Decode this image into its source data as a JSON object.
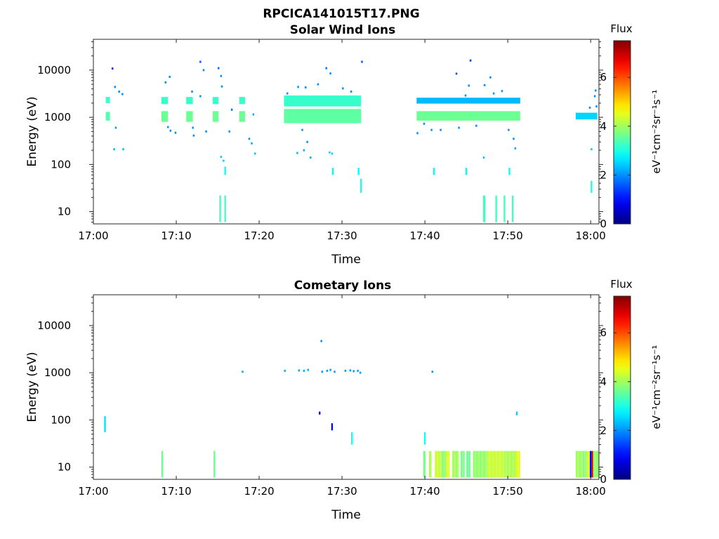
{
  "figure_title": "RPCICA141015T17.PNG",
  "chart_data": [
    {
      "type": "heatmap",
      "title": "Solar Wind Ions",
      "xlabel": "Time",
      "ylabel": "Energy (eV)",
      "x_ticks": [
        "17:00",
        "17:10",
        "17:20",
        "17:30",
        "17:40",
        "17:50",
        "18:00"
      ],
      "x_range": [
        "17:00",
        "18:01"
      ],
      "y_scale": "log",
      "y_ticks": [
        "10",
        "100",
        "1000",
        "10000"
      ],
      "y_range": [
        5.5,
        45000
      ],
      "colorbar": {
        "label": "Flux",
        "unit": "eV⁻¹cm⁻²sr⁻¹s⁻¹",
        "ticks": [
          "0",
          "2",
          "4",
          "6"
        ],
        "range": [
          0,
          7.5
        ],
        "colormap": "jet"
      },
      "patches": [
        {
          "t": [
            "17:01.5",
            "17:02.0"
          ],
          "e": [
            850,
            1300
          ],
          "v": 3.4
        },
        {
          "t": [
            "17:01.5",
            "17:02.0"
          ],
          "e": [
            2000,
            2700
          ],
          "v": 3.2
        },
        {
          "t": [
            "17:08.2",
            "17:09.0"
          ],
          "e": [
            800,
            1350
          ],
          "v": 3.6
        },
        {
          "t": [
            "17:08.2",
            "17:09.0"
          ],
          "e": [
            1900,
            2700
          ],
          "v": 3.2
        },
        {
          "t": [
            "17:11.2",
            "17:12.0"
          ],
          "e": [
            800,
            1350
          ],
          "v": 3.6
        },
        {
          "t": [
            "17:11.2",
            "17:12.0"
          ],
          "e": [
            1900,
            2700
          ],
          "v": 3.2
        },
        {
          "t": [
            "17:14.4",
            "17:15.1"
          ],
          "e": [
            800,
            1350
          ],
          "v": 3.6
        },
        {
          "t": [
            "17:14.4",
            "17:15.1"
          ],
          "e": [
            1900,
            2700
          ],
          "v": 3.2
        },
        {
          "t": [
            "17:17.6",
            "17:18.3"
          ],
          "e": [
            800,
            1350
          ],
          "v": 3.6
        },
        {
          "t": [
            "17:17.6",
            "17:18.3"
          ],
          "e": [
            1900,
            2700
          ],
          "v": 3.2
        },
        {
          "t": [
            "17:23.0",
            "17:32.3"
          ],
          "e": [
            750,
            1500
          ],
          "v": 3.5
        },
        {
          "t": [
            "17:23.0",
            "17:32.3"
          ],
          "e": [
            1700,
            2900
          ],
          "v": 3.2
        },
        {
          "t": [
            "17:39.0",
            "17:51.5"
          ],
          "e": [
            850,
            1350
          ],
          "v": 3.6
        },
        {
          "t": [
            "17:39.0",
            "17:51.5"
          ],
          "e": [
            1950,
            2600
          ],
          "v": 2.3
        },
        {
          "t": [
            "17:58.2",
            "18:00.8"
          ],
          "e": [
            900,
            1250
          ],
          "v": 2.5
        },
        {
          "t": [
            "17:15.2",
            "17:15.4"
          ],
          "e": [
            6,
            22
          ],
          "v": 3.3
        },
        {
          "t": [
            "17:15.8",
            "17:16.0"
          ],
          "e": [
            6,
            22
          ],
          "v": 3.3
        },
        {
          "t": [
            "17:15.8",
            "17:16.0"
          ],
          "e": [
            60,
            90
          ],
          "v": 2.8
        },
        {
          "t": [
            "17:28.8",
            "17:29.0"
          ],
          "e": [
            60,
            85
          ],
          "v": 2.8
        },
        {
          "t": [
            "17:31.9",
            "17:32.1"
          ],
          "e": [
            60,
            85
          ],
          "v": 2.8
        },
        {
          "t": [
            "17:32.2",
            "17:32.4"
          ],
          "e": [
            25,
            50
          ],
          "v": 3.0
        },
        {
          "t": [
            "17:41.0",
            "17:41.2"
          ],
          "e": [
            60,
            85
          ],
          "v": 2.8
        },
        {
          "t": [
            "17:44.9",
            "17:45.1"
          ],
          "e": [
            60,
            85
          ],
          "v": 2.8
        },
        {
          "t": [
            "17:50.1",
            "17:50.3"
          ],
          "e": [
            60,
            85
          ],
          "v": 2.8
        },
        {
          "t": [
            "17:47.0",
            "17:47.3"
          ],
          "e": [
            6,
            22
          ],
          "v": 3.3
        },
        {
          "t": [
            "17:48.5",
            "17:48.7"
          ],
          "e": [
            6,
            22
          ],
          "v": 3.3
        },
        {
          "t": [
            "17:49.5",
            "17:49.7"
          ],
          "e": [
            6,
            22
          ],
          "v": 3.3
        },
        {
          "t": [
            "17:50.5",
            "17:50.7"
          ],
          "e": [
            6,
            22
          ],
          "v": 3.3
        },
        {
          "t": [
            "18:00.0",
            "18:00.2"
          ],
          "e": [
            25,
            45
          ],
          "v": 3.0
        }
      ],
      "specks": [
        [
          "17:02.2",
          10800,
          1.3
        ],
        [
          "17:02.5",
          4400,
          2.0
        ],
        [
          "17:03.0",
          3500,
          2.0
        ],
        [
          "17:03.4",
          3100,
          2.0
        ],
        [
          "17:02.6",
          600,
          2.1
        ],
        [
          "17:02.4",
          210,
          2.3
        ],
        [
          "17:03.5",
          210,
          2.3
        ],
        [
          "17:08.6",
          5500,
          2.0
        ],
        [
          "17:09.1",
          7200,
          2.0
        ],
        [
          "17:08.9",
          620,
          2.0
        ],
        [
          "17:09.2",
          520,
          2.0
        ],
        [
          "17:09.8",
          470,
          2.0
        ],
        [
          "17:11.8",
          3500,
          2.0
        ],
        [
          "17:11.9",
          600,
          2.0
        ],
        [
          "17:12.0",
          410,
          2.0
        ],
        [
          "17:12.8",
          15000,
          1.6
        ],
        [
          "17:13.2",
          10000,
          2.0
        ],
        [
          "17:12.8",
          2800,
          2.0
        ],
        [
          "17:13.5",
          500,
          2.0
        ],
        [
          "17:15.0",
          11000,
          1.7
        ],
        [
          "17:15.3",
          7500,
          2.0
        ],
        [
          "17:15.4",
          4500,
          2.0
        ],
        [
          "17:16.6",
          1450,
          1.8
        ],
        [
          "17:16.3",
          500,
          2.0
        ],
        [
          "17:18.7",
          350,
          2.0
        ],
        [
          "17:19.2",
          1150,
          2.2
        ],
        [
          "17:19.0",
          280,
          2.2
        ],
        [
          "17:19.4",
          170,
          2.4
        ],
        [
          "17:15.3",
          145,
          2.5
        ],
        [
          "17:15.6",
          120,
          2.5
        ],
        [
          "17:23.3",
          3200,
          2.0
        ],
        [
          "17:24.6",
          4400,
          2.0
        ],
        [
          "17:25.5",
          4300,
          2.0
        ],
        [
          "17:27.0",
          5000,
          2.0
        ],
        [
          "17:28.0",
          11000,
          1.7
        ],
        [
          "17:28.5",
          8500,
          2.0
        ],
        [
          "17:30.0",
          4100,
          2.0
        ],
        [
          "17:31.0",
          3500,
          2.0
        ],
        [
          "17:32.3",
          15000,
          1.6
        ],
        [
          "17:25.1",
          540,
          2.0
        ],
        [
          "17:25.7",
          300,
          2.0
        ],
        [
          "17:25.3",
          200,
          2.2
        ],
        [
          "17:24.5",
          175,
          2.3
        ],
        [
          "17:26.1",
          140,
          2.3
        ],
        [
          "17:28.4",
          180,
          2.5
        ],
        [
          "17:28.7",
          170,
          2.5
        ],
        [
          "17:39.0",
          460,
          2.0
        ],
        [
          "17:39.8",
          730,
          2.0
        ],
        [
          "17:40.7",
          540,
          2.0
        ],
        [
          "17:41.8",
          540,
          2.0
        ],
        [
          "17:44.0",
          600,
          2.0
        ],
        [
          "17:44.8",
          2900,
          2.0
        ],
        [
          "17:45.2",
          4700,
          2.0
        ],
        [
          "17:45.4",
          16000,
          1.4
        ],
        [
          "17:47.1",
          4800,
          2.0
        ],
        [
          "17:47.8",
          7000,
          2.0
        ],
        [
          "17:48.2",
          3200,
          2.0
        ],
        [
          "17:49.2",
          3600,
          2.0
        ],
        [
          "17:50.0",
          540,
          2.0
        ],
        [
          "17:50.6",
          350,
          2.0
        ],
        [
          "17:50.8",
          220,
          2.2
        ],
        [
          "17:47.0",
          140,
          2.4
        ],
        [
          "17:43.7",
          8400,
          1.6
        ],
        [
          "17:46.1",
          660,
          2.0
        ],
        [
          "18:00.0",
          210,
          2.5
        ],
        [
          "18:00.5",
          3700,
          2.0
        ],
        [
          "18:00.6",
          1700,
          2.0
        ],
        [
          "18:00.4",
          2800,
          2.0
        ],
        [
          "17:59.8",
          1600,
          2.0
        ]
      ]
    },
    {
      "type": "heatmap",
      "title": "Cometary Ions",
      "xlabel": "Time",
      "ylabel": "Energy (eV)",
      "x_ticks": [
        "17:00",
        "17:10",
        "17:20",
        "17:30",
        "17:40",
        "17:50",
        "18:00"
      ],
      "x_range": [
        "17:00",
        "18:01"
      ],
      "y_scale": "log",
      "y_ticks": [
        "10",
        "100",
        "1000",
        "10000"
      ],
      "y_range": [
        5.5,
        45000
      ],
      "colorbar": {
        "label": "Flux",
        "unit": "eV⁻¹cm⁻²sr⁻¹s⁻¹",
        "ticks": [
          "0",
          "2",
          "4",
          "6"
        ],
        "range": [
          0,
          7.5
        ],
        "colormap": "jet"
      },
      "patches": [
        {
          "t": [
            "17:01.3",
            "17:01.5"
          ],
          "e": [
            55,
            120
          ],
          "v": 2.6
        },
        {
          "t": [
            "17:08.2",
            "17:08.4"
          ],
          "e": [
            6,
            22
          ],
          "v": 3.6
        },
        {
          "t": [
            "17:14.5",
            "17:14.7"
          ],
          "e": [
            6,
            22
          ],
          "v": 3.6
        },
        {
          "t": [
            "17:27.2",
            "17:27.4"
          ],
          "e": [
            130,
            150
          ],
          "v": 0.6
        },
        {
          "t": [
            "17:28.7",
            "17:28.9"
          ],
          "e": [
            60,
            85
          ],
          "v": 1.0
        },
        {
          "t": [
            "17:31.1",
            "17:31.3"
          ],
          "e": [
            30,
            55
          ],
          "v": 2.9
        },
        {
          "t": [
            "17:39.9",
            "17:40.1"
          ],
          "e": [
            30,
            55
          ],
          "v": 2.9
        },
        {
          "t": [
            "17:51.0",
            "17:51.2"
          ],
          "e": [
            125,
            150
          ],
          "v": 2.5
        }
      ],
      "low_energy_band": {
        "e": [
          6,
          22
        ],
        "columns": [
          [
            "17:39.8",
            "17:40.1",
            3.7
          ],
          [
            "17:40.5",
            "17:40.8",
            4.1
          ],
          [
            "17:41.2",
            "17:42.0",
            4.3
          ],
          [
            "17:42.0",
            "17:42.5",
            3.8
          ],
          [
            "17:42.5",
            "17:43.0",
            4.4
          ],
          [
            "17:43.3",
            "17:44.1",
            4.0
          ],
          [
            "17:44.3",
            "17:44.8",
            3.7
          ],
          [
            "17:45.0",
            "17:45.5",
            3.6
          ],
          [
            "17:45.8",
            "17:47.5",
            3.9
          ],
          [
            "17:47.5",
            "17:49.5",
            4.3
          ],
          [
            "17:49.5",
            "17:51.0",
            4.1
          ],
          [
            "17:51.0",
            "17:51.5",
            4.5
          ],
          [
            "17:58.2",
            "17:59.0",
            4.0
          ],
          [
            "17:59.0",
            "17:59.5",
            3.8
          ],
          [
            "17:59.5",
            "17:59.9",
            4.4
          ],
          [
            "17:59.9",
            "18:00.1",
            1.0
          ],
          [
            "18:00.1",
            "18:00.3",
            6.8
          ],
          [
            "18:00.3",
            "18:01.0",
            3.9
          ]
        ]
      },
      "specks": [
        [
          "17:17.9",
          1050,
          2.2
        ],
        [
          "17:23.0",
          1100,
          2.2
        ],
        [
          "17:24.7",
          1120,
          2.2
        ],
        [
          "17:25.3",
          1100,
          2.2
        ],
        [
          "17:25.8",
          1150,
          2.2
        ],
        [
          "17:27.4",
          4700,
          2.0
        ],
        [
          "17:27.5",
          1050,
          2.1
        ],
        [
          "17:28.1",
          1100,
          2.1
        ],
        [
          "17:28.5",
          1150,
          2.1
        ],
        [
          "17:29.0",
          1050,
          2.1
        ],
        [
          "17:30.3",
          1100,
          2.1
        ],
        [
          "17:30.9",
          1120,
          2.1
        ],
        [
          "17:31.3",
          1080,
          2.1
        ],
        [
          "17:31.8",
          1100,
          2.1
        ],
        [
          "17:32.1",
          1000,
          2.1
        ],
        [
          "17:40.8",
          1050,
          2.1
        ]
      ]
    }
  ]
}
